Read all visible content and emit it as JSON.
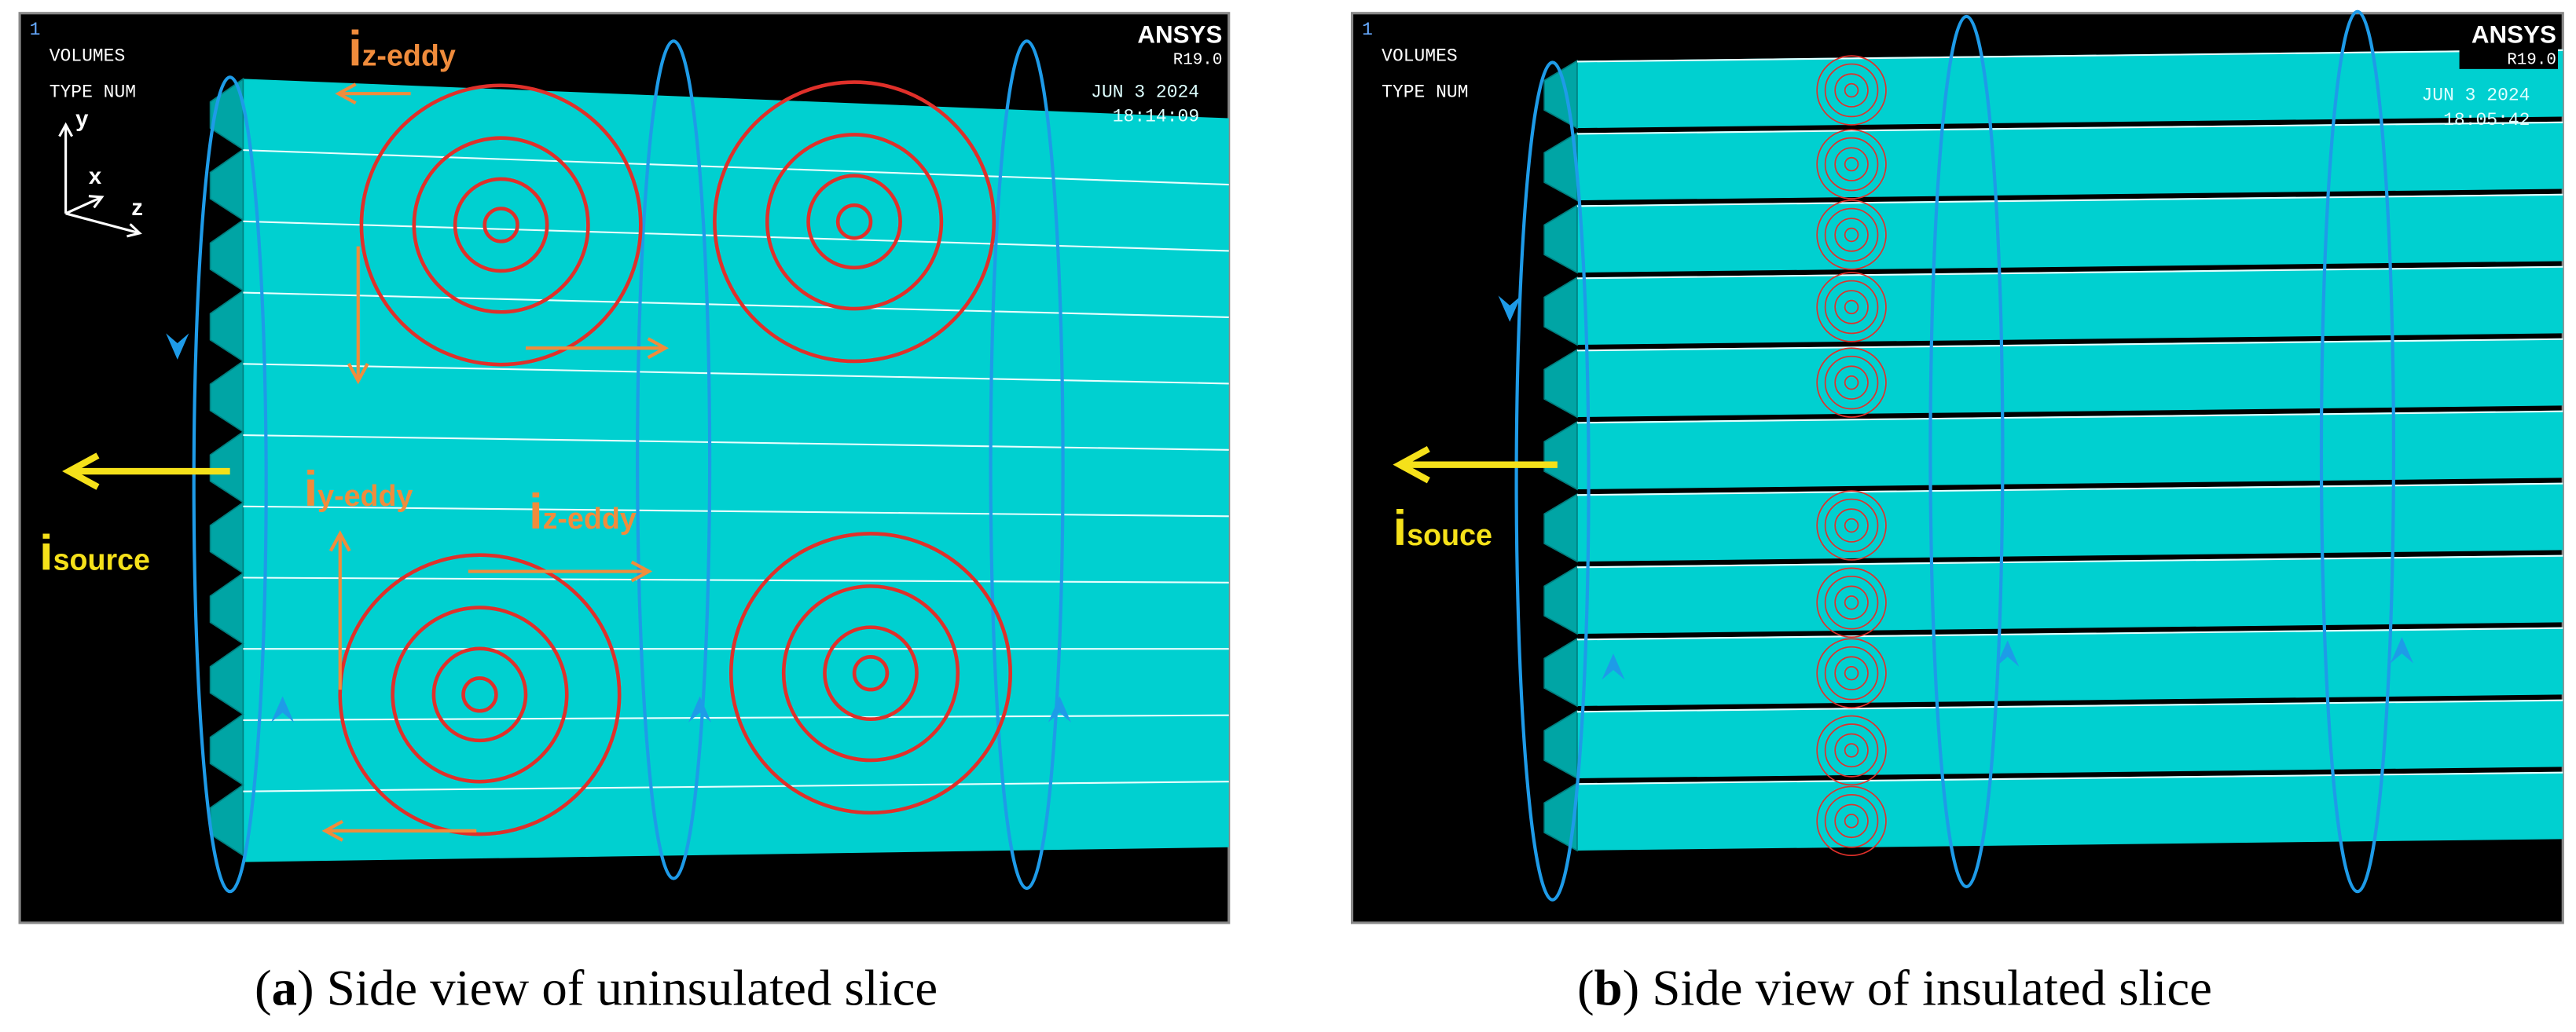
{
  "panels": [
    {
      "viewport": "1",
      "volumes": "VOLUMES",
      "type_num": "TYPE NUM",
      "brand": "ANSYS",
      "version": "R19.0",
      "date": "JUN  3 2024",
      "time": "18:14:09",
      "axes": {
        "y": "y",
        "x": "x",
        "z": "z"
      },
      "annotations": [
        {
          "main": "i",
          "sub": "z-eddy"
        },
        {
          "main": "i",
          "sub": "y-eddy"
        },
        {
          "main": "i",
          "sub": "z-eddy"
        },
        {
          "main": "i",
          "sub": "source"
        }
      ],
      "caption": {
        "open": "(",
        "label": "a",
        "text": ") Side view of uninsulated slice"
      }
    },
    {
      "viewport": "1",
      "volumes": "VOLUMES",
      "type_num": "TYPE NUM",
      "brand": "ANSYS",
      "version": "R19.0",
      "date": "JUN  3 2024",
      "time": "18:05:42",
      "annotations": [
        {
          "main": "i",
          "sub": "souce"
        }
      ],
      "caption": {
        "open": "(",
        "label": "b",
        "text": ") Side view of insulated slice"
      }
    }
  ]
}
